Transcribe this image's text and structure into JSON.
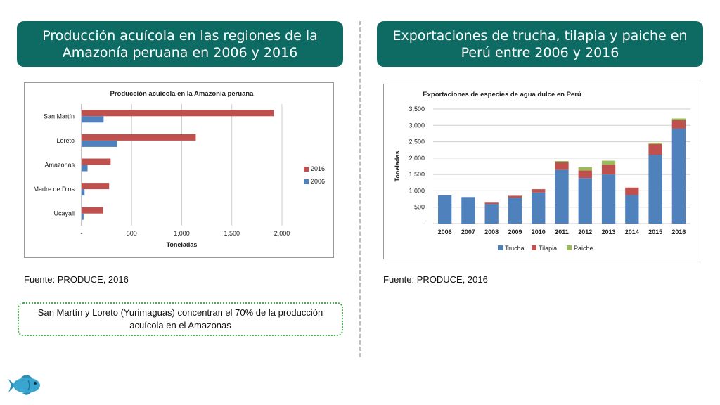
{
  "left_panel": {
    "header": "Producción acuícola en las regiones de la Amazonía peruana en 2006 y 2016",
    "source": "Fuente: PRODUCE, 2016",
    "note": "San Martín y Loreto  (Yurimaguas) concentran el 70% de la producción acuícola en el Amazonas"
  },
  "right_panel": {
    "header": "Exportaciones de trucha, tilapia y paiche en Perú entre 2006 y 2016",
    "source": "Fuente: PRODUCE, 2016"
  },
  "colors": {
    "header_bg": "#0e6b63",
    "red": "#c0504d",
    "blue": "#4f81bd",
    "green": "#9bbb59"
  },
  "icons": {
    "logo": "fish-icon"
  },
  "chart_data": [
    {
      "type": "bar",
      "orientation": "horizontal",
      "title": "Producción acuícola en la Amazonia peruana",
      "xlabel": "Toneladas",
      "ylabel": "",
      "categories": [
        "San Martín",
        "Loreto",
        "Amazonas",
        "Madre de Dios",
        "Ucayali"
      ],
      "series": [
        {
          "name": "2016",
          "color": "#c0504d",
          "values": [
            1920,
            1140,
            290,
            275,
            215
          ]
        },
        {
          "name": "2006",
          "color": "#4f81bd",
          "values": [
            220,
            355,
            60,
            30,
            20
          ]
        }
      ],
      "xlim": [
        0,
        2000
      ],
      "xticks": [
        "-",
        "500",
        "1,000",
        "1,500",
        "2,000"
      ],
      "xtick_values": [
        0,
        500,
        1000,
        1500,
        2000
      ],
      "grid": true,
      "legend_position": "right"
    },
    {
      "type": "bar",
      "stacked": true,
      "title": "Exportaciones de especies de agua dulce en Perú",
      "xlabel": "",
      "ylabel": "Toneladas",
      "categories": [
        "2006",
        "2007",
        "2008",
        "2009",
        "2010",
        "2011",
        "2012",
        "2013",
        "2014",
        "2015",
        "2016"
      ],
      "series": [
        {
          "name": "Trucha",
          "color": "#4f81bd",
          "values": [
            860,
            810,
            600,
            790,
            950,
            1640,
            1390,
            1500,
            870,
            2100,
            2900
          ]
        },
        {
          "name": "Tilapia",
          "color": "#c0504d",
          "values": [
            0,
            0,
            60,
            60,
            100,
            230,
            230,
            300,
            230,
            330,
            260
          ]
        },
        {
          "name": "Paiche",
          "color": "#9bbb59",
          "values": [
            0,
            0,
            0,
            0,
            0,
            40,
            100,
            120,
            0,
            40,
            50
          ]
        }
      ],
      "ylim": [
        0,
        3500
      ],
      "yticks": [
        "-",
        "500",
        "1,000",
        "1,500",
        "2,000",
        "2,500",
        "3,000",
        "3,500"
      ],
      "ytick_values": [
        0,
        500,
        1000,
        1500,
        2000,
        2500,
        3000,
        3500
      ],
      "grid": true,
      "legend_position": "bottom"
    }
  ]
}
